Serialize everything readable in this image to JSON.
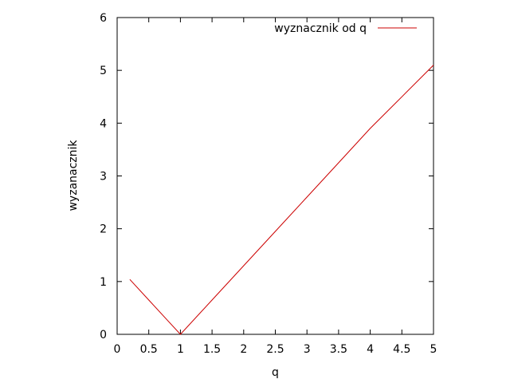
{
  "chart_data": {
    "type": "line",
    "title": "",
    "xlabel": "q",
    "ylabel": "wyzanacznik",
    "xlim": [
      0,
      5
    ],
    "ylim": [
      0,
      6
    ],
    "xticks": [
      0,
      0.5,
      1,
      1.5,
      2,
      2.5,
      3,
      3.5,
      4,
      4.5,
      5
    ],
    "yticks": [
      0,
      1,
      2,
      3,
      4,
      5,
      6
    ],
    "xtick_labels": [
      "0",
      "0.5",
      "1",
      "1.5",
      "2",
      "2.5",
      "3",
      "3.5",
      "4",
      "4.5",
      "5"
    ],
    "ytick_labels": [
      "0",
      "1",
      "2",
      "3",
      "4",
      "5",
      "6"
    ],
    "grid": false,
    "legend_position": "top-right",
    "series": [
      {
        "name": "wyznacznik od q",
        "color": "#cc0000",
        "x": [
          0.2,
          0.5,
          0.8,
          1.0,
          1.5,
          2.0,
          2.5,
          3.0,
          3.5,
          4.0,
          4.5,
          5.0
        ],
        "y": [
          1.04,
          0.65,
          0.26,
          0.0,
          0.65,
          1.3,
          1.95,
          2.6,
          3.25,
          3.9,
          4.5,
          5.1
        ]
      }
    ]
  }
}
